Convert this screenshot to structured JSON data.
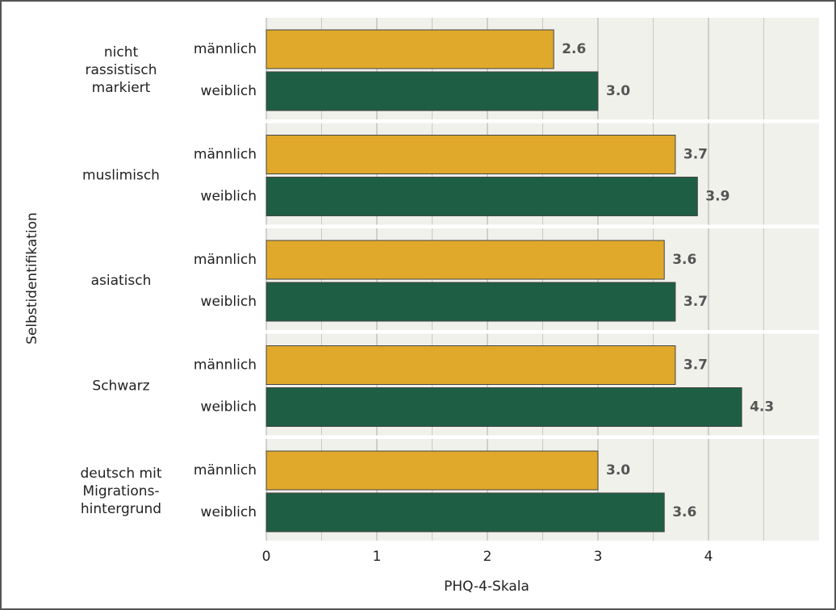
{
  "chart_data": {
    "type": "grouped-hbar",
    "x_label": "PHQ-4-Skala",
    "y_label": "Selbstidentifikation",
    "categories": [
      [
        "nicht",
        "rassistisch",
        "markiert"
      ],
      [
        "muslimisch"
      ],
      [
        "asiatisch"
      ],
      [
        "Schwarz"
      ],
      [
        "deutsch mit",
        "Migrations-",
        "hintergrund"
      ]
    ],
    "series": [
      {
        "name": "männlich",
        "color": "#e0a92c",
        "values": [
          2.6,
          3.7,
          3.6,
          3.7,
          3.0
        ],
        "value_labels": [
          "2.6",
          "3.7",
          "3.6",
          "3.7",
          "3.0"
        ]
      },
      {
        "name": "weiblich",
        "color": "#1e5e45",
        "values": [
          3.0,
          3.9,
          3.7,
          4.3,
          3.6
        ],
        "value_labels": [
          "3.0",
          "3.9",
          "3.7",
          "4.3",
          "3.6"
        ]
      }
    ],
    "xlim": [
      0,
      5
    ],
    "xticks": [
      0,
      1,
      2,
      3,
      4
    ],
    "x_minor_ticks": [
      0.5,
      1.5,
      2.5,
      3.5,
      4.5
    ],
    "grid": true
  }
}
